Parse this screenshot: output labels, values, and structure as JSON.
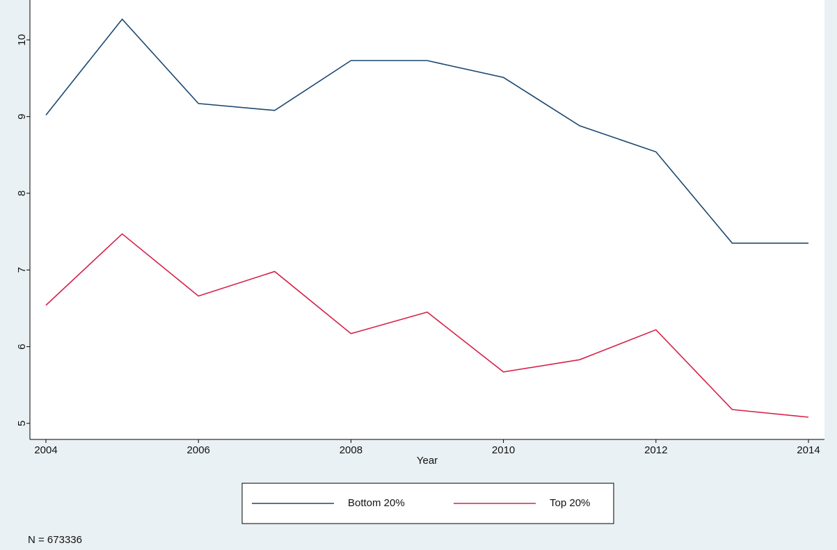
{
  "chart_data": {
    "type": "line",
    "x": [
      2004,
      2005,
      2006,
      2007,
      2008,
      2009,
      2010,
      2011,
      2012,
      2013,
      2014
    ],
    "series": [
      {
        "name": "Bottom 20%",
        "color": "#1a476f",
        "values": [
          9.02,
          10.27,
          9.17,
          9.08,
          9.73,
          9.73,
          9.51,
          8.88,
          8.54,
          7.35,
          7.35
        ]
      },
      {
        "name": "Top 20%",
        "color": "#d6224a",
        "values": [
          6.54,
          7.47,
          6.66,
          6.98,
          6.17,
          6.45,
          5.67,
          5.83,
          6.22,
          5.18,
          5.08
        ]
      }
    ],
    "xlabel": "Year",
    "xlim": [
      2003.79,
      2014.21
    ],
    "xticks": [
      2004,
      2006,
      2008,
      2010,
      2012,
      2014
    ],
    "ylim": [
      4.79,
      10.52
    ],
    "yticks": [
      5,
      6,
      7,
      8,
      9,
      10
    ],
    "note": "N = 673336"
  }
}
